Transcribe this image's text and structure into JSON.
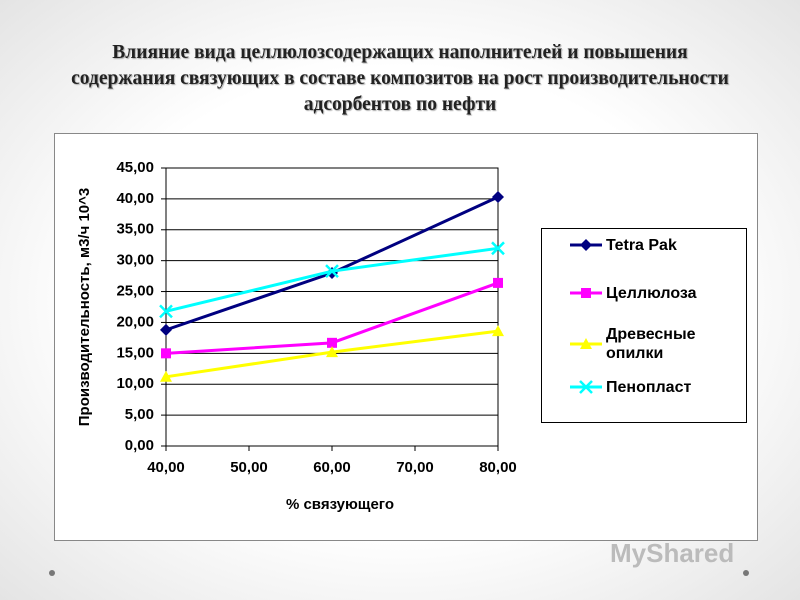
{
  "chart_data": {
    "type": "line",
    "title": "Влияние вида целлюлозсодержащих наполнителей и повышения содержания связующих в составе композитов на рост производительности адсорбентов по нефти",
    "x_label": "% связующего",
    "y_label": "Производительность, м3/ч 10^3",
    "x": [
      40,
      60,
      80
    ],
    "xlim": [
      40,
      80
    ],
    "xticks": [
      {
        "value": 40,
        "label": "40,00"
      },
      {
        "value": 50,
        "label": "50,00"
      },
      {
        "value": 60,
        "label": "60,00"
      },
      {
        "value": 70,
        "label": "70,00"
      },
      {
        "value": 80,
        "label": "80,00"
      }
    ],
    "ylim": [
      0,
      45
    ],
    "yticks": [
      {
        "value": 0,
        "label": "0,00"
      },
      {
        "value": 5,
        "label": "5,00"
      },
      {
        "value": 10,
        "label": "10,00"
      },
      {
        "value": 15,
        "label": "15,00"
      },
      {
        "value": 20,
        "label": "20,00"
      },
      {
        "value": 25,
        "label": "25,00"
      },
      {
        "value": 30,
        "label": "30,00"
      },
      {
        "value": 35,
        "label": "35,00"
      },
      {
        "value": 40,
        "label": "40,00"
      },
      {
        "value": 45,
        "label": "45,00"
      }
    ],
    "grid": true,
    "legend": "right",
    "series": [
      {
        "name": "Tetra Pak",
        "color": "#000080",
        "marker": "diamond",
        "values": [
          18.8,
          28.0,
          40.3
        ]
      },
      {
        "name": "Целлюлоза",
        "color": "#ff00ff",
        "marker": "square",
        "values": [
          15.0,
          16.7,
          26.4
        ]
      },
      {
        "name": "Древесные опилки",
        "color": "#ffff00",
        "marker": "triangle",
        "values": [
          11.2,
          15.2,
          18.6
        ]
      },
      {
        "name": "Пенопласт",
        "color": "#00ffff",
        "marker": "x",
        "values": [
          21.8,
          28.3,
          32.0
        ]
      }
    ]
  },
  "watermark": "MyShared"
}
